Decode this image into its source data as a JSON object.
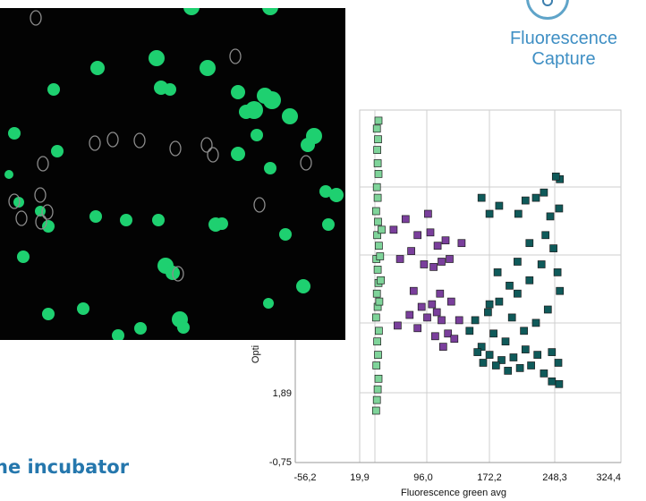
{
  "caption": {
    "line1": "Fluorescence",
    "line2": "Capture"
  },
  "heading": "he incubator",
  "icons": {
    "caption_icon": "fluorescence-drop-icon"
  },
  "chart_data": {
    "type": "scatter",
    "xlabel": "Fluorescence green avg",
    "ylabel": "Opti",
    "x_ticks": [
      "-56,2",
      "19,9",
      "96,0",
      "172,2",
      "248,3",
      "324,4"
    ],
    "y_ticks": [
      "-0,75",
      "1,89"
    ],
    "xlim": [
      -56.2,
      324.4
    ],
    "ylim": [
      -0.75,
      12.5
    ],
    "grid": true,
    "series": [
      {
        "color": "#7fd49a",
        "points": [
          [
            18,
            1.2
          ],
          [
            19,
            1.6
          ],
          [
            20,
            2.0
          ],
          [
            21,
            2.4
          ],
          [
            18.5,
            2.9
          ],
          [
            20.5,
            3.3
          ],
          [
            19.5,
            3.8
          ],
          [
            21.5,
            4.2
          ],
          [
            18,
            4.7
          ],
          [
            20,
            5.1
          ],
          [
            19,
            5.6
          ],
          [
            21,
            6.0
          ],
          [
            20,
            6.5
          ],
          [
            18.5,
            6.9
          ],
          [
            21.5,
            7.4
          ],
          [
            19.5,
            7.8
          ],
          [
            20.5,
            8.3
          ],
          [
            18,
            8.7
          ],
          [
            20,
            9.2
          ],
          [
            19,
            9.6
          ],
          [
            21,
            10.1
          ],
          [
            20,
            10.5
          ],
          [
            19.5,
            11.0
          ],
          [
            20.5,
            11.4
          ],
          [
            19,
            11.8
          ],
          [
            21,
            12.1
          ],
          [
            23,
            7.0
          ],
          [
            24,
            6.1
          ],
          [
            22,
            5.3
          ],
          [
            25,
            8.0
          ]
        ]
      },
      {
        "color": "#7a3f9c",
        "points": [
          [
            40,
            8.0
          ],
          [
            55,
            8.4
          ],
          [
            62,
            7.2
          ],
          [
            70,
            7.8
          ],
          [
            48,
            6.9
          ],
          [
            78,
            6.7
          ],
          [
            83,
            8.6
          ],
          [
            86,
            7.9
          ],
          [
            90,
            6.6
          ],
          [
            95,
            7.4
          ],
          [
            100,
            6.8
          ],
          [
            105,
            7.6
          ],
          [
            110,
            6.9
          ],
          [
            75,
            5.1
          ],
          [
            82,
            4.7
          ],
          [
            88,
            5.2
          ],
          [
            94,
            4.9
          ],
          [
            100,
            4.6
          ],
          [
            108,
            4.1
          ],
          [
            116,
            3.9
          ],
          [
            102,
            3.6
          ],
          [
            92,
            4.0
          ],
          [
            60,
            4.8
          ],
          [
            70,
            4.3
          ],
          [
            125,
            7.5
          ],
          [
            122,
            4.6
          ],
          [
            112,
            5.3
          ],
          [
            98,
            5.6
          ],
          [
            45,
            4.4
          ],
          [
            65,
            5.7
          ]
        ]
      },
      {
        "color": "#0f5a5a",
        "points": [
          [
            135,
            4.2
          ],
          [
            142,
            4.6
          ],
          [
            150,
            3.6
          ],
          [
            158,
            4.9
          ],
          [
            165,
            4.1
          ],
          [
            172,
            5.3
          ],
          [
            180,
            3.8
          ],
          [
            188,
            4.7
          ],
          [
            195,
            5.6
          ],
          [
            203,
            4.2
          ],
          [
            210,
            6.1
          ],
          [
            218,
            4.5
          ],
          [
            225,
            6.7
          ],
          [
            233,
            5.0
          ],
          [
            240,
            7.3
          ],
          [
            248,
            5.7
          ],
          [
            246,
            3.0
          ],
          [
            238,
            3.4
          ],
          [
            228,
            2.6
          ],
          [
            220,
            3.3
          ],
          [
            212,
            2.9
          ],
          [
            205,
            3.5
          ],
          [
            198,
            2.8
          ],
          [
            190,
            3.2
          ],
          [
            183,
            2.7
          ],
          [
            175,
            3.1
          ],
          [
            168,
            2.9
          ],
          [
            160,
            3.3
          ],
          [
            152,
            3.0
          ],
          [
            145,
            3.4
          ],
          [
            248,
            9.9
          ],
          [
            243,
            10.0
          ],
          [
            236,
            8.5
          ],
          [
            228,
            9.4
          ],
          [
            218,
            9.2
          ],
          [
            205,
            9.1
          ],
          [
            196,
            8.6
          ],
          [
            172,
            8.9
          ],
          [
            160,
            8.6
          ],
          [
            150,
            9.2
          ],
          [
            247,
            8.8
          ],
          [
            247,
            2.2
          ],
          [
            230,
            7.8
          ],
          [
            210,
            7.5
          ],
          [
            185,
            5.9
          ],
          [
            170,
            6.4
          ],
          [
            160,
            5.2
          ],
          [
            195,
            6.8
          ],
          [
            245,
            6.4
          ],
          [
            238,
            2.3
          ]
        ]
      }
    ]
  }
}
